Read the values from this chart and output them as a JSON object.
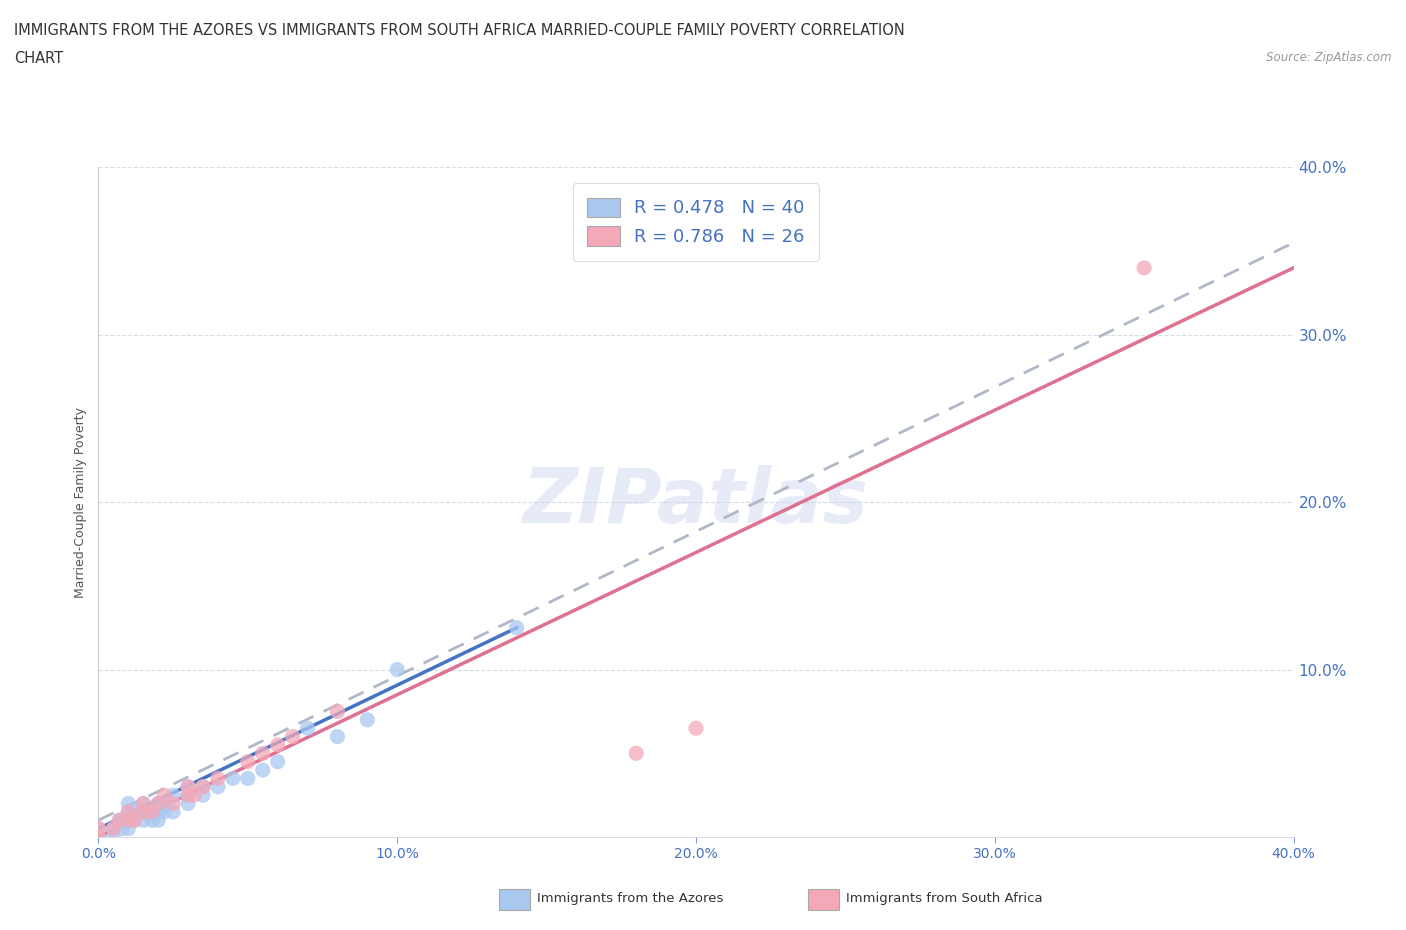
{
  "title_line1": "IMMIGRANTS FROM THE AZORES VS IMMIGRANTS FROM SOUTH AFRICA MARRIED-COUPLE FAMILY POVERTY CORRELATION",
  "title_line2": "CHART",
  "source": "Source: ZipAtlas.com",
  "ylabel": "Married-Couple Family Poverty",
  "xlim": [
    0.0,
    0.4
  ],
  "ylim": [
    0.0,
    0.4
  ],
  "xtick_values": [
    0.0,
    0.1,
    0.2,
    0.3,
    0.4
  ],
  "ytick_values": [
    0.1,
    0.2,
    0.3,
    0.4
  ],
  "azores_color": "#a8c8f0",
  "sa_color": "#f4a8b8",
  "azores_line_color": "#4472c4",
  "sa_line_color": "#e07090",
  "trendline_color": "#b0b8c8",
  "R_azores": 0.478,
  "N_azores": 40,
  "R_sa": 0.786,
  "N_sa": 26,
  "legend_label_azores": "Immigrants from the Azores",
  "legend_label_sa": "Immigrants from South Africa",
  "watermark": "ZIPatlas",
  "title_color": "#333333",
  "tick_color": "#4472c4",
  "ylabel_color": "#555555",
  "source_color": "#999999",
  "background_color": "#ffffff",
  "grid_color": "#d8dce8",
  "azores_scatter_x": [
    0.0,
    0.0,
    0.005,
    0.005,
    0.007,
    0.008,
    0.008,
    0.01,
    0.01,
    0.01,
    0.01,
    0.012,
    0.013,
    0.015,
    0.015,
    0.015,
    0.018,
    0.018,
    0.02,
    0.02,
    0.02,
    0.022,
    0.022,
    0.025,
    0.025,
    0.03,
    0.03,
    0.03,
    0.035,
    0.035,
    0.04,
    0.045,
    0.05,
    0.055,
    0.06,
    0.07,
    0.08,
    0.09,
    0.1,
    0.14
  ],
  "azores_scatter_y": [
    0.0,
    0.005,
    0.0,
    0.005,
    0.01,
    0.005,
    0.01,
    0.005,
    0.01,
    0.015,
    0.02,
    0.01,
    0.015,
    0.01,
    0.015,
    0.02,
    0.01,
    0.015,
    0.01,
    0.015,
    0.02,
    0.015,
    0.02,
    0.015,
    0.025,
    0.02,
    0.025,
    0.03,
    0.025,
    0.03,
    0.03,
    0.035,
    0.035,
    0.04,
    0.045,
    0.065,
    0.06,
    0.07,
    0.1,
    0.125
  ],
  "sa_scatter_x": [
    0.0,
    0.0,
    0.005,
    0.007,
    0.01,
    0.01,
    0.012,
    0.015,
    0.015,
    0.018,
    0.02,
    0.022,
    0.025,
    0.03,
    0.03,
    0.032,
    0.035,
    0.04,
    0.05,
    0.055,
    0.06,
    0.065,
    0.08,
    0.18,
    0.2,
    0.35
  ],
  "sa_scatter_y": [
    0.0,
    0.005,
    0.005,
    0.01,
    0.01,
    0.015,
    0.01,
    0.015,
    0.02,
    0.015,
    0.02,
    0.025,
    0.02,
    0.025,
    0.03,
    0.025,
    0.03,
    0.035,
    0.045,
    0.05,
    0.055,
    0.06,
    0.075,
    0.05,
    0.065,
    0.34
  ],
  "azores_trendline_x": [
    0.0,
    0.14
  ],
  "azores_trendline_y": [
    0.005,
    0.125
  ],
  "sa_trendline_x": [
    0.0,
    0.4
  ],
  "sa_trendline_y": [
    0.0,
    0.34
  ],
  "dashed_trendline_x": [
    0.0,
    0.4
  ],
  "dashed_trendline_y": [
    0.01,
    0.355
  ]
}
